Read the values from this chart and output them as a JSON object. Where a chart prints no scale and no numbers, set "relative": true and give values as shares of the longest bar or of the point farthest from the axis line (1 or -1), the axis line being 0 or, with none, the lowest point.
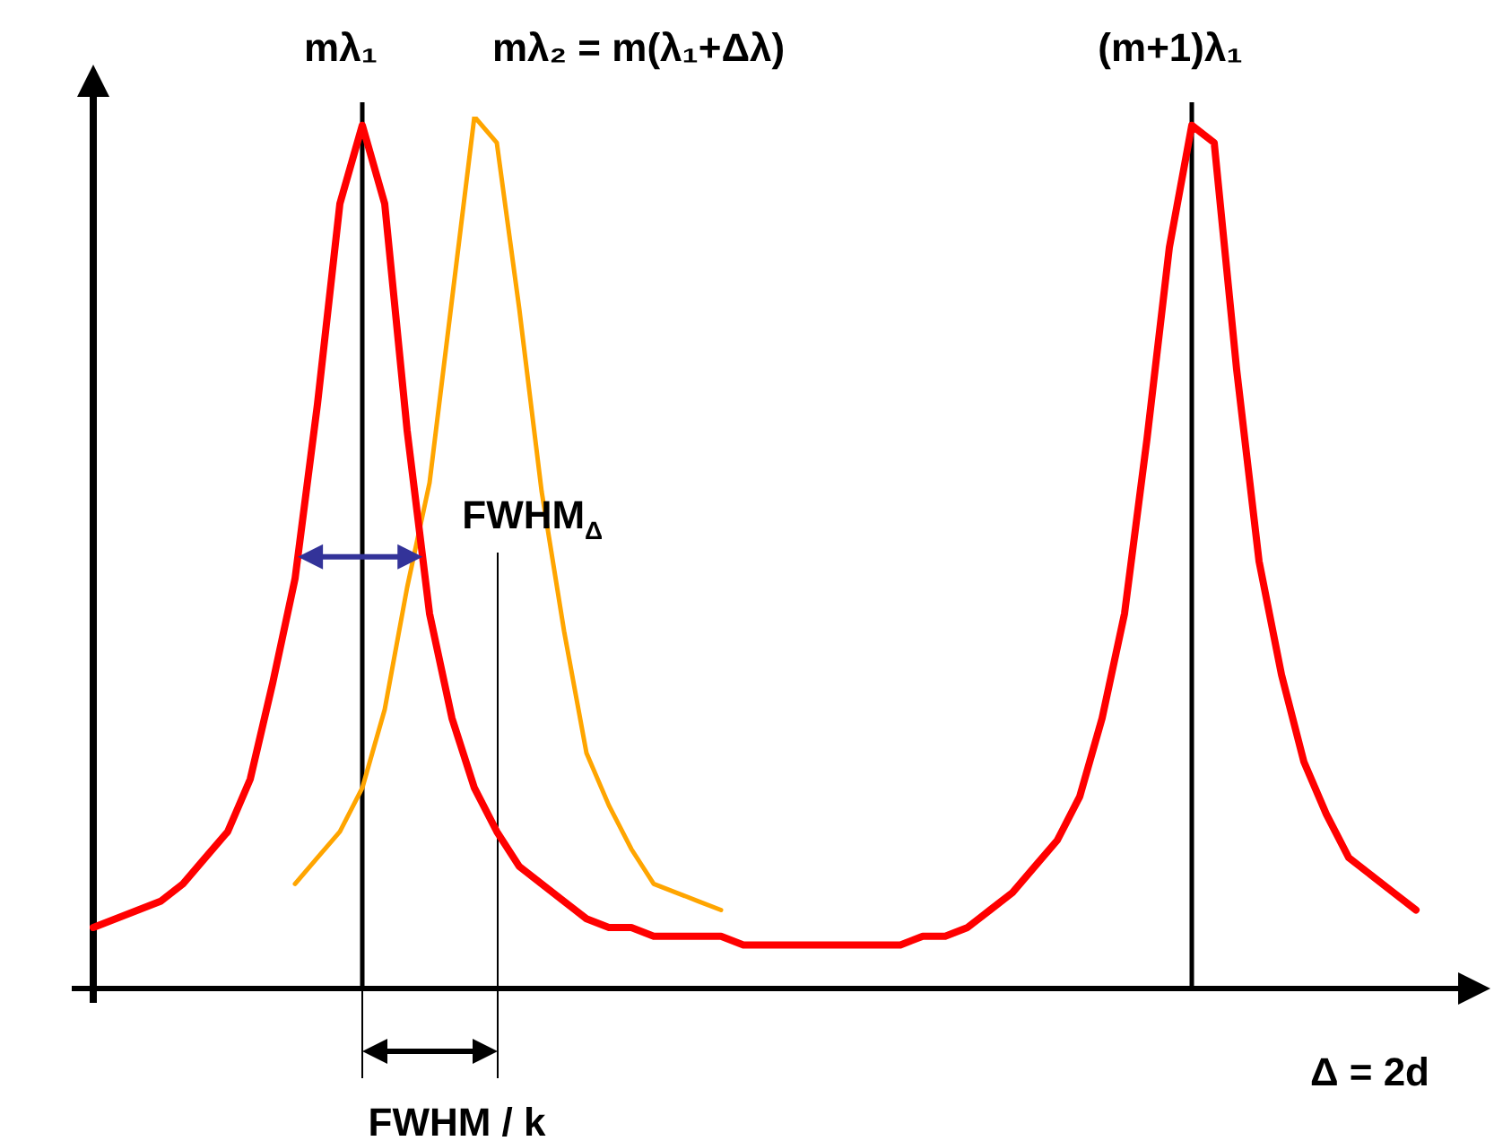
{
  "chart_data": {
    "type": "line",
    "relative": true,
    "xlabel": "Δ = 2d",
    "legend": false,
    "marker": "none",
    "line_style": "solid",
    "categories": [
      null,
      null,
      null,
      null,
      null,
      null,
      null,
      null,
      null,
      null,
      null,
      null,
      null,
      null,
      null,
      null,
      null,
      null,
      null,
      null,
      null,
      null,
      null,
      null,
      null,
      null,
      null,
      null,
      null,
      null,
      null,
      null,
      null,
      null,
      null,
      null,
      null,
      null,
      null,
      null,
      null,
      null,
      null,
      null,
      null,
      null,
      null,
      null,
      null,
      null,
      null,
      null,
      null,
      null,
      null,
      null,
      null,
      null,
      null,
      null,
      null,
      null,
      null
    ],
    "series": [
      {
        "color": "#ff0000",
        "values": [
          0.07,
          0.08,
          0.09,
          0.1,
          0.12,
          0.15,
          0.18,
          0.24,
          0.35,
          0.47,
          0.67,
          0.9,
          0.99,
          0.9,
          0.64,
          0.43,
          0.31,
          0.23,
          0.18,
          0.14,
          0.12,
          0.1,
          0.08,
          0.07,
          0.07,
          0.06,
          0.06,
          0.06,
          0.06,
          0.05,
          0.05,
          0.05,
          0.05,
          0.05,
          0.05,
          0.05,
          0.05,
          0.06,
          0.06,
          0.07,
          0.09,
          0.11,
          0.14,
          0.17,
          0.22,
          0.31,
          0.43,
          0.63,
          0.85,
          0.99,
          0.97,
          0.71,
          0.49,
          0.36,
          0.26,
          0.2,
          0.15,
          0.13,
          0.11,
          0.09,
          null,
          null,
          null
        ]
      },
      {
        "color": "#ffa500",
        "values": [
          null,
          null,
          null,
          null,
          null,
          null,
          null,
          null,
          null,
          0.12,
          0.15,
          0.18,
          0.23,
          0.32,
          0.46,
          0.58,
          0.79,
          1,
          0.97,
          0.78,
          0.57,
          0.41,
          0.27,
          0.21,
          0.16,
          0.12,
          0.11,
          0.1,
          0.09,
          null,
          null,
          null,
          null,
          null,
          null,
          null,
          null,
          null,
          null,
          null,
          null,
          null,
          null,
          null,
          null,
          null,
          null,
          null,
          null,
          null,
          null,
          null,
          null,
          null,
          null,
          null,
          null,
          null,
          null,
          null,
          null,
          null,
          null
        ]
      }
    ],
    "annotations": [
      "mλ₁",
      "mλ₂ = m(λ₁+Δλ)",
      "(m+1)λ₁",
      "FWHM$_{Δ}$",
      "FWHM / k"
    ]
  }
}
